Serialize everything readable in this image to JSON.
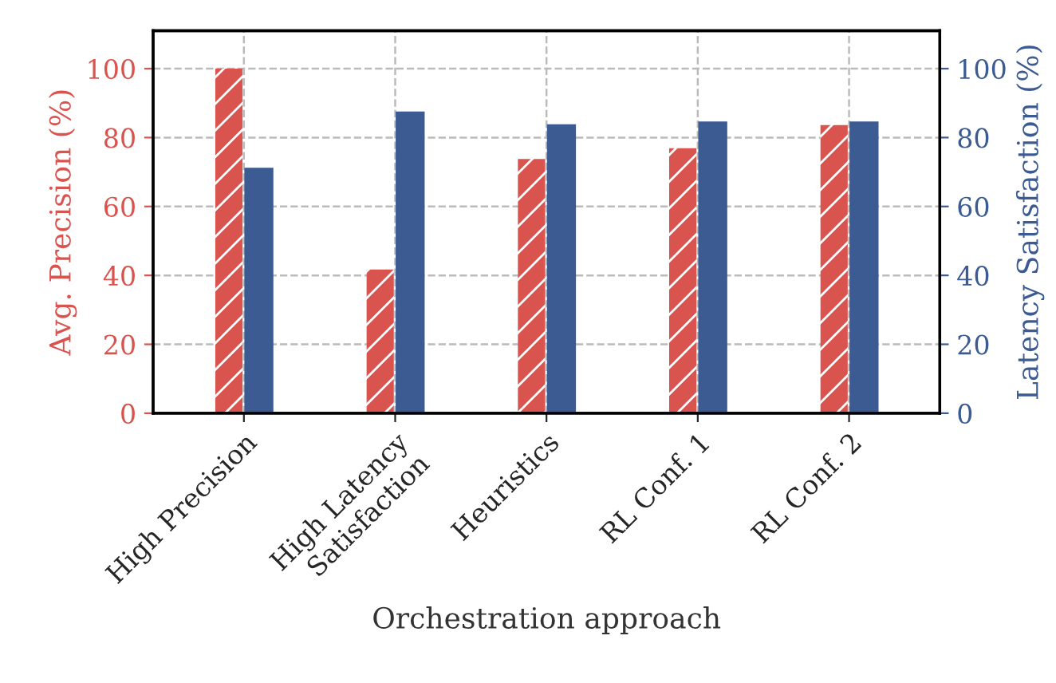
{
  "chart_data": {
    "type": "bar",
    "xlabel": "Orchestration approach",
    "ylabel": "Avg. Precision (%)",
    "y2label": "Latency Satisfaction (%)",
    "categories": [
      "High Precision",
      "High Latency\nSatisfaction",
      "Heuristics",
      "RL Conf. 1",
      "RL Conf. 2"
    ],
    "series": [
      {
        "color": "#d9534f",
        "values": [
          100,
          41.7,
          73.8,
          76.9,
          83.6
        ]
      },
      {
        "color": "#3b5b92",
        "values": [
          71,
          87.3,
          83.6,
          84.4,
          84.4
        ],
        "axis": "y2"
      }
    ],
    "ylim": [
      0,
      111
    ],
    "yticks": [
      0,
      20,
      40,
      60,
      80,
      100
    ],
    "y2lim": [
      0,
      111
    ],
    "y2ticks": [
      0,
      20,
      40,
      60,
      80,
      100
    ],
    "grid": true,
    "legend": false
  }
}
